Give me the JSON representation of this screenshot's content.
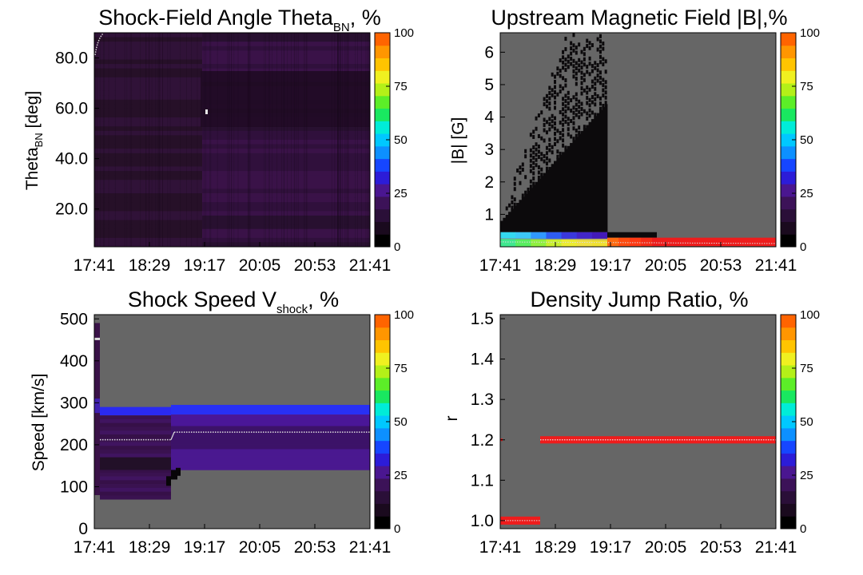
{
  "chart_data": [
    {
      "type": "heatmap",
      "title_main": "Shock-Field Angle Theta",
      "title_sub": "BN",
      "title_tail": ", %",
      "ylabel_main": "Theta",
      "ylabel_sub": "BN",
      "ylabel_tail": " [deg]",
      "xticks": [
        "17:41",
        "18:29",
        "19:17",
        "20:05",
        "20:53",
        "21:41"
      ],
      "yticks": [
        "20.0",
        "40.0",
        "60.0",
        "80.0"
      ],
      "ylim": [
        5,
        90
      ],
      "colorbar_ticks": [
        "0",
        "25",
        "50",
        "75",
        "100"
      ],
      "colorbar_range": [
        0,
        100
      ],
      "note": "Mostly low percentages (~5-15%) across all angles; darker region around 60 deg after 19:17."
    },
    {
      "type": "heatmap",
      "title": "Upstream Magnetic Field |B|,%",
      "ylabel": "|B| [G]",
      "xticks": [
        "17:41",
        "18:29",
        "19:17",
        "20:05",
        "20:53",
        "21:41"
      ],
      "yticks": [
        "1",
        "2",
        "3",
        "4",
        "5",
        "6"
      ],
      "ylim": [
        0,
        6.6
      ],
      "colorbar_ticks": [
        "0",
        "25",
        "50",
        "75",
        "100"
      ],
      "colorbar_range": [
        0,
        100
      ],
      "note": "Low |B| band dominant (~100% red after 19:17); black columns up to ~6.5 G before 19:17."
    },
    {
      "type": "heatmap",
      "title_main": "Shock Speed V",
      "title_sub": "shock",
      "title_tail": ", %",
      "ylabel": "Speed [km/s]",
      "xticks": [
        "17:41",
        "18:29",
        "19:17",
        "20:05",
        "20:53",
        "21:41"
      ],
      "yticks": [
        "0",
        "100",
        "200",
        "300",
        "400",
        "500"
      ],
      "ylim": [
        0,
        510
      ],
      "colorbar_ticks": [
        "0",
        "25",
        "50",
        "75",
        "100"
      ],
      "colorbar_range": [
        0,
        100
      ],
      "note": "Distribution spans ~70-290 km/s; blue band near 285 km/s; median near 210 then 230 km/s."
    },
    {
      "type": "heatmap",
      "title": "Density Jump Ratio, %",
      "ylabel": "r",
      "xticks": [
        "17:41",
        "18:29",
        "19:17",
        "20:05",
        "20:53",
        "21:41"
      ],
      "yticks": [
        "1.0",
        "1.1",
        "1.2",
        "1.3",
        "1.4",
        "1.5"
      ],
      "ylim": [
        0.98,
        1.51
      ],
      "colorbar_ticks": [
        "0",
        "25",
        "50",
        "75",
        "100"
      ],
      "colorbar_range": [
        0,
        100
      ],
      "note": "r = 1.0 (100%) early, then r = 1.2 (100%) from about 18:20 onward."
    }
  ]
}
